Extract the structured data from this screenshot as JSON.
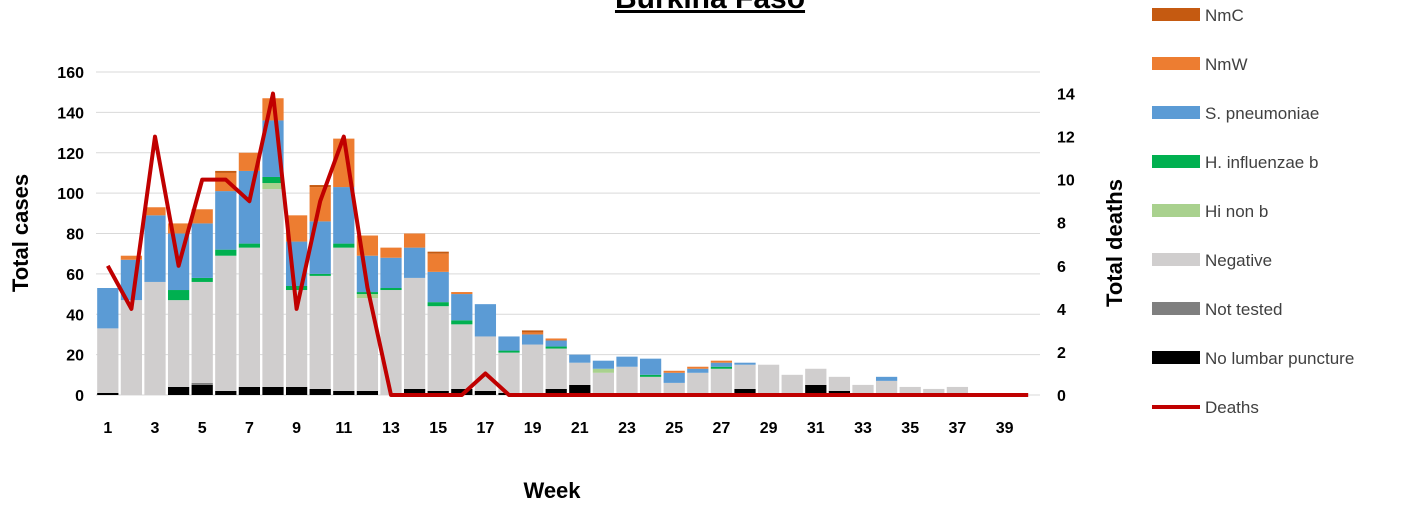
{
  "chart_data": {
    "type": "bar",
    "stacked": true,
    "title": "Burkina Faso",
    "xlabel": "Week",
    "ylabel": "Total cases",
    "y2label": "Total deaths",
    "ylim": [
      0,
      160
    ],
    "y2lim": [
      0,
      15
    ],
    "yticks": [
      0,
      20,
      40,
      60,
      80,
      100,
      120,
      140,
      160
    ],
    "y2ticks": [
      0,
      2,
      4,
      6,
      8,
      10,
      12,
      14
    ],
    "x": [
      1,
      2,
      3,
      4,
      5,
      6,
      7,
      8,
      9,
      10,
      11,
      12,
      13,
      14,
      15,
      16,
      17,
      18,
      19,
      20,
      21,
      22,
      23,
      24,
      25,
      26,
      27,
      28,
      29,
      30,
      31,
      32,
      33,
      34,
      35,
      36,
      37,
      38,
      39,
      40
    ],
    "xtick_labels": [
      "1",
      "3",
      "5",
      "7",
      "9",
      "11",
      "13",
      "15",
      "17",
      "19",
      "21",
      "23",
      "25",
      "27",
      "29",
      "31",
      "33",
      "35",
      "37",
      "39"
    ],
    "grid": true,
    "legend_position": "right",
    "series": [
      {
        "name": "No lumbar puncture",
        "color": "#000000",
        "values": [
          1,
          0,
          0,
          4,
          5,
          2,
          4,
          4,
          4,
          3,
          2,
          2,
          0,
          3,
          2,
          3,
          2,
          1,
          1,
          3,
          5,
          0,
          0,
          0,
          0,
          0,
          0,
          3,
          0,
          0,
          5,
          2,
          0,
          0,
          0,
          0,
          0,
          0,
          0,
          0
        ]
      },
      {
        "name": "Not tested",
        "color": "#7f7f7f",
        "values": [
          0,
          0,
          0,
          0,
          1,
          0,
          0,
          0,
          0,
          0,
          0,
          0,
          0,
          0,
          0,
          0,
          0,
          0,
          0,
          0,
          0,
          0,
          0,
          0,
          0,
          0,
          0,
          0,
          0,
          0,
          0,
          0,
          0,
          0,
          0,
          0,
          0,
          0,
          0,
          0
        ]
      },
      {
        "name": "Negative",
        "color": "#d0cece",
        "values": [
          32,
          47,
          56,
          43,
          50,
          67,
          69,
          98,
          48,
          56,
          71,
          46,
          52,
          55,
          42,
          32,
          27,
          20,
          24,
          20,
          11,
          11,
          14,
          9,
          6,
          11,
          13,
          12,
          15,
          10,
          8,
          7,
          5,
          7,
          4,
          3,
          4,
          0,
          0,
          0
        ]
      },
      {
        "name": "Hi non b",
        "color": "#a9d18e",
        "values": [
          0,
          0,
          0,
          0,
          0,
          0,
          0,
          3,
          0,
          0,
          0,
          2,
          0,
          0,
          0,
          0,
          0,
          0,
          0,
          0,
          0,
          2,
          0,
          0,
          0,
          0,
          0,
          0,
          0,
          0,
          0,
          0,
          0,
          0,
          0,
          0,
          0,
          0,
          0,
          0
        ]
      },
      {
        "name": "H. influenzae b",
        "color": "#00b050",
        "values": [
          0,
          0,
          0,
          5,
          2,
          3,
          2,
          3,
          2,
          1,
          2,
          1,
          1,
          0,
          2,
          2,
          0,
          1,
          0,
          1,
          0,
          0,
          0,
          1,
          0,
          0,
          1,
          0,
          0,
          0,
          0,
          0,
          0,
          0,
          0,
          0,
          0,
          0,
          0,
          0
        ]
      },
      {
        "name": "S. pneumoniae",
        "color": "#5b9bd5",
        "values": [
          20,
          20,
          33,
          28,
          27,
          29,
          36,
          28,
          22,
          26,
          28,
          18,
          15,
          15,
          15,
          13,
          16,
          7,
          5,
          3,
          4,
          4,
          5,
          8,
          5,
          2,
          2,
          1,
          0,
          0,
          0,
          0,
          0,
          2,
          0,
          0,
          0,
          0,
          0,
          0
        ]
      },
      {
        "name": "NmW",
        "color": "#ed7d31",
        "values": [
          0,
          2,
          4,
          5,
          7,
          9,
          9,
          11,
          13,
          17,
          24,
          10,
          5,
          7,
          9,
          1,
          0,
          0,
          1,
          1,
          0,
          0,
          0,
          0,
          1,
          1,
          1,
          0,
          0,
          0,
          0,
          0,
          0,
          0,
          0,
          0,
          0,
          0,
          0,
          0
        ]
      },
      {
        "name": "NmC",
        "color": "#c55a11",
        "values": [
          0,
          0,
          0,
          0,
          0,
          1,
          0,
          0,
          0,
          1,
          0,
          0,
          0,
          0,
          1,
          0,
          0,
          0,
          1,
          0,
          0,
          0,
          0,
          0,
          0,
          0,
          0,
          0,
          0,
          0,
          0,
          0,
          0,
          0,
          0,
          0,
          0,
          0,
          0,
          0
        ]
      }
    ],
    "line_series": {
      "name": "Deaths",
      "color": "#c00000",
      "axis": "right",
      "values": [
        6,
        4,
        12,
        6,
        10,
        10,
        9,
        14,
        4,
        9,
        12,
        5,
        0,
        0,
        0,
        0,
        1,
        0,
        0,
        0,
        0,
        0,
        0,
        0,
        0,
        0,
        0,
        0,
        0,
        0,
        0,
        0,
        0,
        0,
        0,
        0,
        0,
        0,
        0,
        0
      ]
    },
    "legend_order": [
      "NmC",
      "NmW",
      "S. pneumoniae",
      "H. influenzae b",
      "Hi non b",
      "Negative",
      "Not tested",
      "No lumbar puncture",
      "Deaths"
    ]
  }
}
